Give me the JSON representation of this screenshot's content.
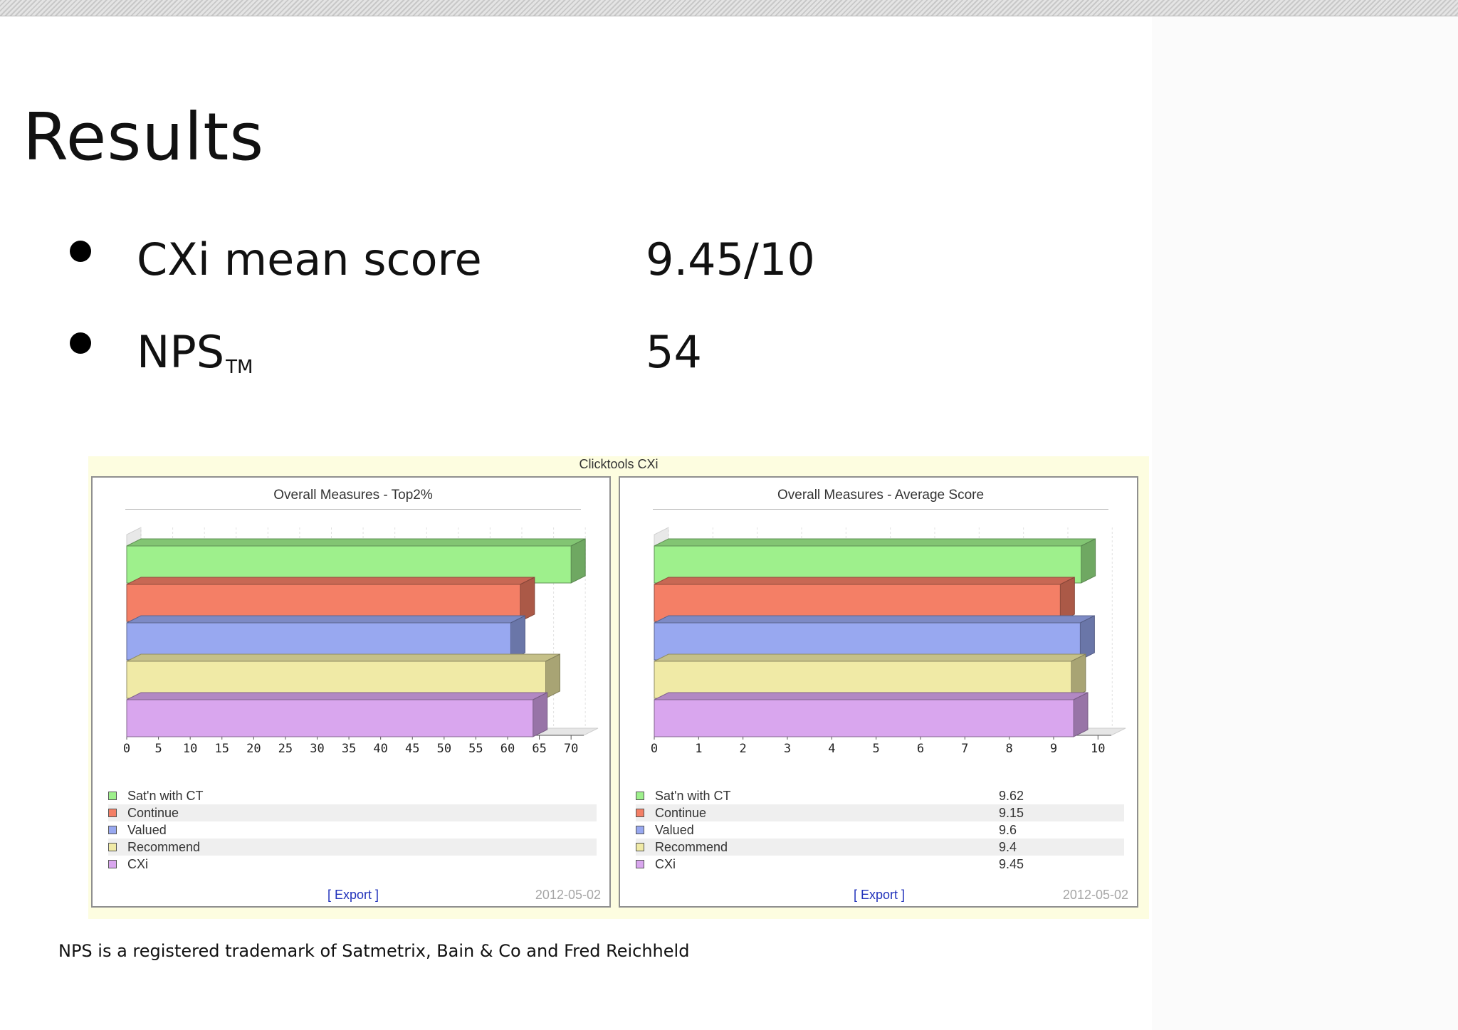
{
  "slide": {
    "title": "Results",
    "metrics": [
      {
        "label": "CXi mean score",
        "value": "9.45/10"
      },
      {
        "label": "NPS",
        "label_sup": "TM",
        "value": "54"
      }
    ],
    "footnote": "NPS is a registered trademark of Satmetrix, Bain & Co and Fred Reichheld"
  },
  "dashboard": {
    "title": "Clicktools CXi",
    "export_label": "[ Export ]",
    "date": "2012-05-02"
  },
  "colors": {
    "Sat'n with CT": "#9ef08c",
    "Continue": "#f47f66",
    "Valued": "#98a8f0",
    "Recommend": "#f0eaa6",
    "CXi": "#d9a6ee"
  },
  "chart_data": [
    {
      "type": "bar",
      "orientation": "horizontal",
      "title": "Overall Measures - Top2%",
      "categories": [
        "Sat'n with CT",
        "Continue",
        "Valued",
        "Recommend",
        "CXi"
      ],
      "values": [
        70,
        62,
        60.5,
        66,
        64
      ],
      "xlim": [
        0,
        72
      ],
      "xticks": [
        "0",
        "5",
        "10",
        "15",
        "20",
        "25",
        "30",
        "35",
        "40",
        "45",
        "50",
        "55",
        "60",
        "65",
        "70"
      ],
      "legend": [
        "Sat'n with CT",
        "Continue",
        "Valued",
        "Recommend",
        "CXi"
      ],
      "legend_values": [
        "",
        "",
        "",
        "",
        ""
      ],
      "legend_position": "bottom",
      "grid": true
    },
    {
      "type": "bar",
      "orientation": "horizontal",
      "title": "Overall Measures - Average Score",
      "categories": [
        "Sat'n with CT",
        "Continue",
        "Valued",
        "Recommend",
        "CXi"
      ],
      "values": [
        9.62,
        9.15,
        9.6,
        9.4,
        9.45
      ],
      "xlim": [
        0,
        10.3
      ],
      "xticks": [
        "0",
        "1",
        "2",
        "3",
        "4",
        "5",
        "6",
        "7",
        "8",
        "9",
        "10"
      ],
      "legend": [
        "Sat'n with CT",
        "Continue",
        "Valued",
        "Recommend",
        "CXi"
      ],
      "legend_values": [
        "9.62",
        "9.15",
        "9.6",
        "9.4",
        "9.45"
      ],
      "legend_position": "bottom",
      "grid": true
    }
  ]
}
